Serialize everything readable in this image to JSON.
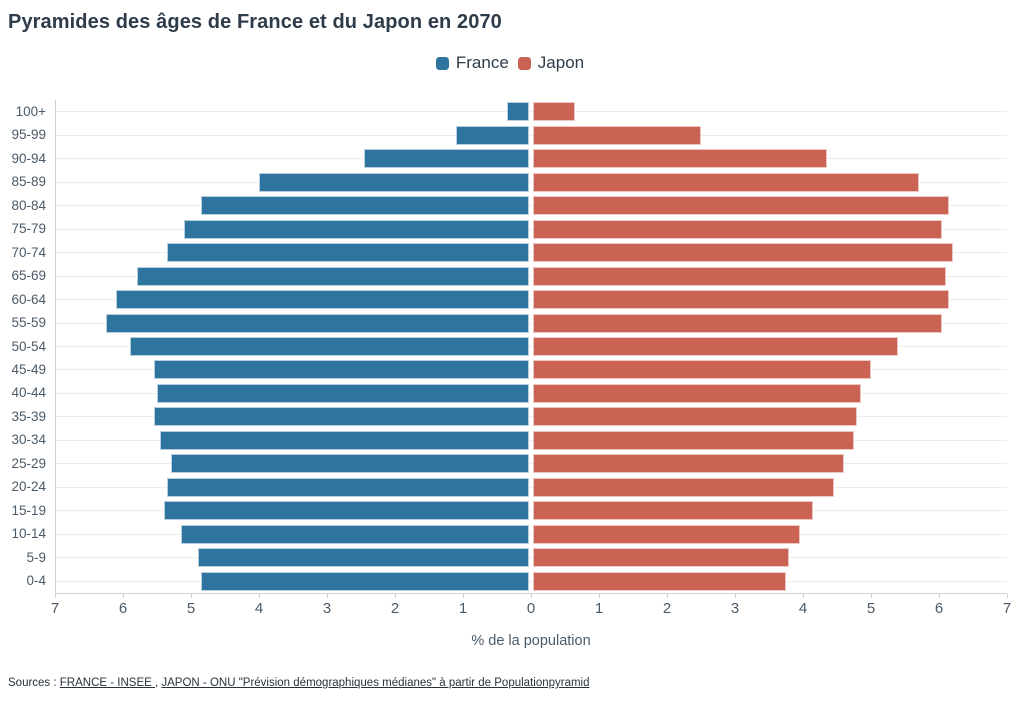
{
  "title": "Pyramides des âges de France et du Japon en 2070",
  "legend": {
    "items": [
      {
        "label": "France",
        "color": "#2f749e"
      },
      {
        "label": "Japon",
        "color": "#cb6354"
      }
    ]
  },
  "chart_data": {
    "type": "bar",
    "variant": "population-pyramid",
    "title": "Pyramides des âges de France et du Japon en 2070",
    "xlabel": "% de la population",
    "ylabel": "",
    "xmax": 7,
    "xlim": [
      -7,
      7
    ],
    "grid": "horizontal",
    "legend_position": "top-center",
    "x_ticks": [
      "7",
      "6",
      "5",
      "4",
      "3",
      "2",
      "1",
      "0",
      "1",
      "2",
      "3",
      "4",
      "5",
      "6",
      "7"
    ],
    "categories": [
      "100+",
      "95-99",
      "90-94",
      "85-89",
      "80-84",
      "75-79",
      "70-74",
      "65-69",
      "60-64",
      "55-59",
      "50-54",
      "45-49",
      "40-44",
      "35-39",
      "30-34",
      "25-29",
      "20-24",
      "15-19",
      "10-14",
      "5-9",
      "0-4"
    ],
    "series": [
      {
        "name": "France",
        "side": "left",
        "color": "#2f749e",
        "values": [
          0.35,
          1.1,
          2.45,
          4.0,
          4.85,
          5.1,
          5.35,
          5.8,
          6.1,
          6.25,
          5.9,
          5.55,
          5.5,
          5.55,
          5.45,
          5.3,
          5.35,
          5.4,
          5.15,
          4.9,
          4.85
        ]
      },
      {
        "name": "Japon",
        "side": "right",
        "color": "#cb6354",
        "values": [
          0.65,
          2.5,
          4.35,
          5.7,
          6.15,
          6.05,
          6.2,
          6.1,
          6.15,
          6.05,
          5.4,
          5.0,
          4.85,
          4.8,
          4.75,
          4.6,
          4.45,
          4.15,
          3.95,
          3.8,
          3.75
        ]
      }
    ]
  },
  "sources": {
    "prefix": "Sources : ",
    "separator": ", ",
    "links": [
      {
        "text": "FRANCE - INSEE "
      },
      {
        "text": "JAPON - ONU \"Prévision démographiques médianes\" à partir de Populationpyramid"
      }
    ]
  },
  "colors": {
    "france": "#2f749e",
    "japon": "#cb6354",
    "text_dark": "#2e3c4a",
    "text_axis": "#4a5a68",
    "text_src": "#28323c",
    "grid": "#ececec",
    "axis_line": "#ccd1d6"
  }
}
